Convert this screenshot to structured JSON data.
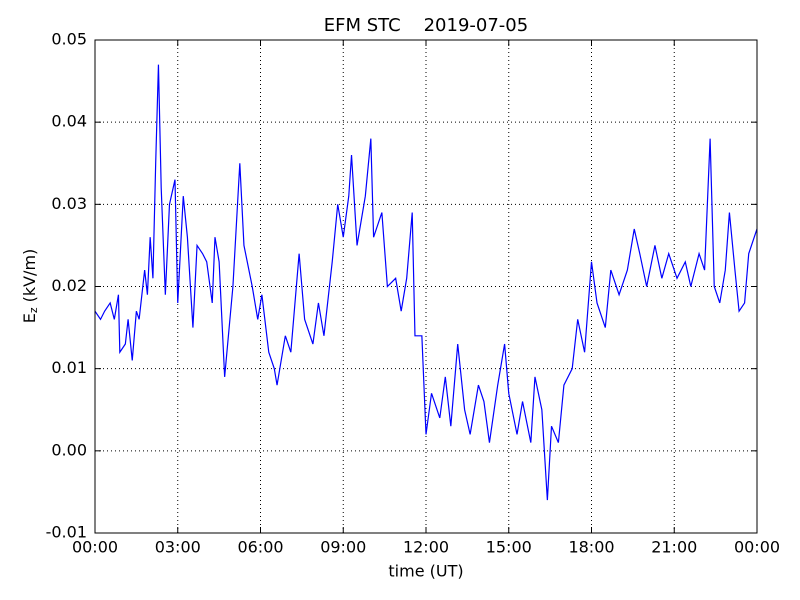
{
  "chart_data": {
    "type": "line",
    "title": "EFM STC    2019-07-05",
    "xlabel": "time (UT)",
    "ylabel": {
      "base": "E",
      "sub": "z",
      "unit": "(kV/m)"
    },
    "x": [
      0,
      0.2,
      0.35,
      0.55,
      0.7,
      0.85,
      0.9,
      1.1,
      1.2,
      1.35,
      1.5,
      1.6,
      1.8,
      1.9,
      2.0,
      2.1,
      2.2,
      2.3,
      2.4,
      2.55,
      2.7,
      2.9,
      3.0,
      3.2,
      3.35,
      3.55,
      3.7,
      3.9,
      4.05,
      4.25,
      4.35,
      4.5,
      4.7,
      5.0,
      5.25,
      5.4,
      5.7,
      5.9,
      6.05,
      6.3,
      6.5,
      6.6,
      6.9,
      7.1,
      7.4,
      7.6,
      7.9,
      8.1,
      8.3,
      8.6,
      8.8,
      9.0,
      9.2,
      9.3,
      9.5,
      9.8,
      10.0,
      10.1,
      10.4,
      10.6,
      10.9,
      11.1,
      11.3,
      11.5,
      11.6,
      11.85,
      12.0,
      12.2,
      12.5,
      12.7,
      12.9,
      13.15,
      13.4,
      13.6,
      13.9,
      14.1,
      14.3,
      14.6,
      14.85,
      15.0,
      15.3,
      15.5,
      15.8,
      15.95,
      16.2,
      16.4,
      16.55,
      16.8,
      17.0,
      17.3,
      17.5,
      17.75,
      18.0,
      18.2,
      18.5,
      18.7,
      19.0,
      19.3,
      19.55,
      19.75,
      20.0,
      20.3,
      20.55,
      20.8,
      21.1,
      21.4,
      21.6,
      21.9,
      22.1,
      22.3,
      22.45,
      22.65,
      22.85,
      23.0,
      23.2,
      23.35,
      23.55,
      23.7,
      24
    ],
    "series": [
      {
        "name": "Ez",
        "color": "#0000ff",
        "values": [
          0.017,
          0.016,
          0.017,
          0.018,
          0.016,
          0.019,
          0.012,
          0.013,
          0.016,
          0.011,
          0.017,
          0.016,
          0.022,
          0.019,
          0.026,
          0.021,
          0.035,
          0.047,
          0.032,
          0.019,
          0.03,
          0.033,
          0.018,
          0.031,
          0.026,
          0.015,
          0.025,
          0.024,
          0.023,
          0.018,
          0.026,
          0.023,
          0.009,
          0.02,
          0.035,
          0.025,
          0.02,
          0.016,
          0.019,
          0.012,
          0.01,
          0.008,
          0.014,
          0.012,
          0.024,
          0.016,
          0.013,
          0.018,
          0.014,
          0.023,
          0.03,
          0.026,
          0.031,
          0.036,
          0.025,
          0.031,
          0.038,
          0.026,
          0.029,
          0.02,
          0.021,
          0.017,
          0.021,
          0.029,
          0.014,
          0.014,
          0.002,
          0.007,
          0.004,
          0.009,
          0.003,
          0.013,
          0.005,
          0.002,
          0.008,
          0.006,
          0.001,
          0.008,
          0.013,
          0.007,
          0.002,
          0.006,
          0.001,
          0.009,
          0.005,
          -0.006,
          0.003,
          0.001,
          0.008,
          0.01,
          0.016,
          0.012,
          0.023,
          0.018,
          0.015,
          0.022,
          0.019,
          0.022,
          0.027,
          0.024,
          0.02,
          0.025,
          0.021,
          0.024,
          0.021,
          0.023,
          0.02,
          0.024,
          0.022,
          0.038,
          0.02,
          0.018,
          0.022,
          0.029,
          0.022,
          0.017,
          0.018,
          0.024,
          0.027
        ]
      }
    ],
    "xlim": [
      0,
      24
    ],
    "xticks": [
      {
        "value": 0,
        "label": "00:00"
      },
      {
        "value": 3,
        "label": "03:00"
      },
      {
        "value": 6,
        "label": "06:00"
      },
      {
        "value": 9,
        "label": "09:00"
      },
      {
        "value": 12,
        "label": "12:00"
      },
      {
        "value": 15,
        "label": "15:00"
      },
      {
        "value": 18,
        "label": "18:00"
      },
      {
        "value": 21,
        "label": "21:00"
      },
      {
        "value": 24,
        "label": "00:00"
      }
    ],
    "ylim": [
      -0.01,
      0.05
    ],
    "yticks": [
      -0.01,
      {
        "value": 0,
        "label": "0.00"
      },
      0.01,
      0.02,
      0.03,
      0.04,
      0.05
    ],
    "grid": true
  }
}
